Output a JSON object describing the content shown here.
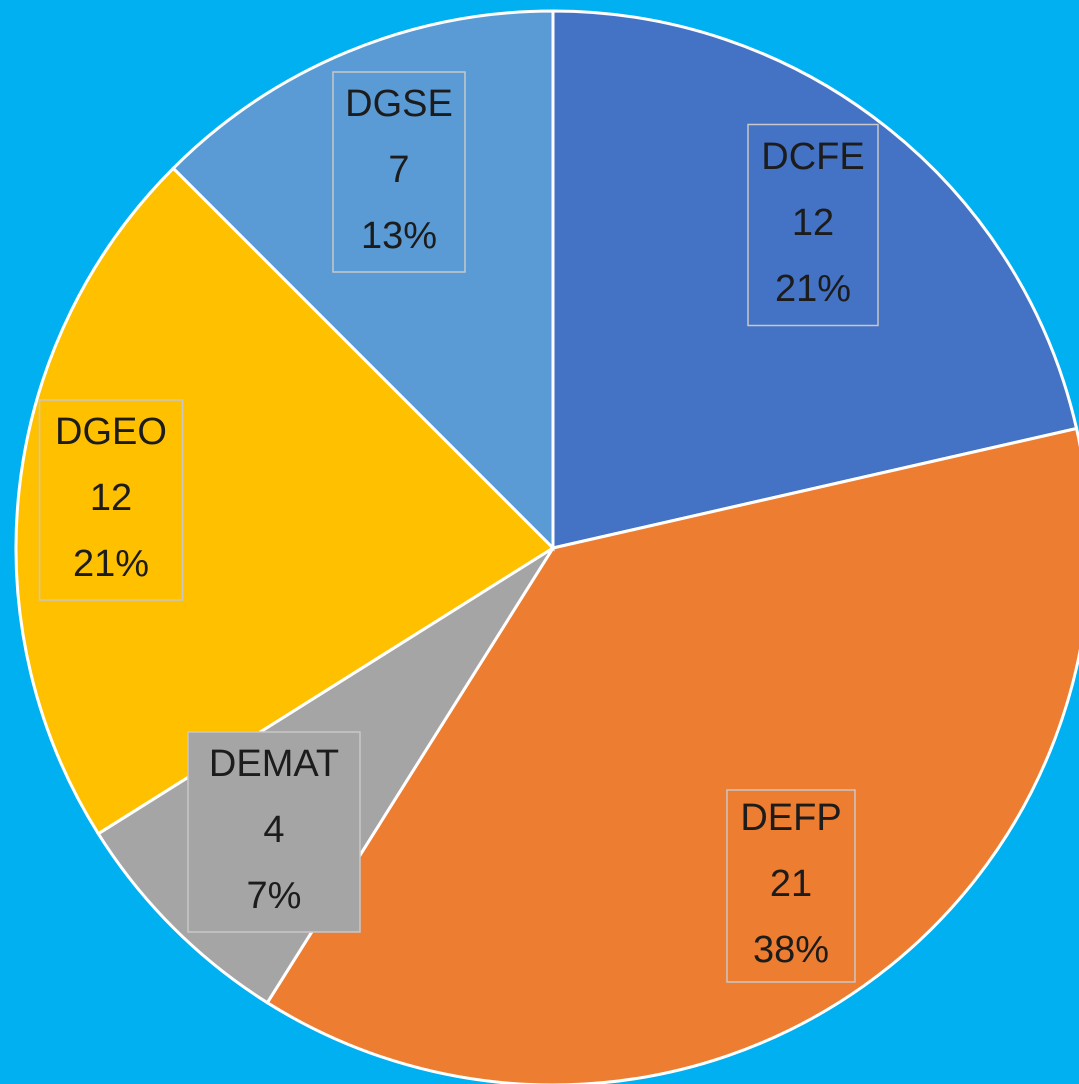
{
  "chart_data": {
    "type": "pie",
    "categories": [
      "DCFE",
      "DEFP",
      "DEMAT",
      "DGEO",
      "DGSE"
    ],
    "values": [
      12,
      21,
      4,
      12,
      7
    ],
    "percent_labels": [
      "21%",
      "38%",
      "7%",
      "21%",
      "13%"
    ],
    "colors": [
      "#4472C4",
      "#ED7D31",
      "#A5A5A5",
      "#FFC000",
      "#5B9BD5"
    ],
    "background": "#00B0F0"
  }
}
